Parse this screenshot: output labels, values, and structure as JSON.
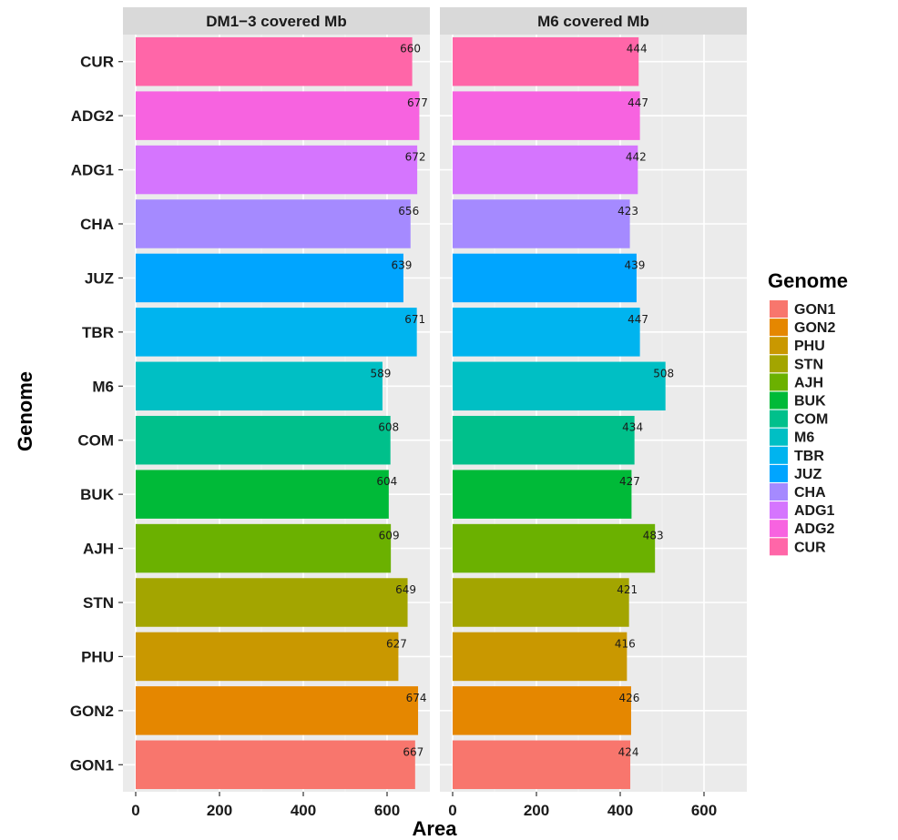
{
  "chart_data": {
    "type": "bar",
    "orientation": "horizontal",
    "xlabel": "Area",
    "ylabel": "Genome",
    "xlim": [
      0,
      700
    ],
    "xticks": [
      0,
      200,
      400,
      600
    ],
    "grid": true,
    "legend_position": "right",
    "legend_title": "Genome",
    "categories": [
      "GON1",
      "GON2",
      "PHU",
      "STN",
      "AJH",
      "BUK",
      "COM",
      "M6",
      "TBR",
      "JUZ",
      "CHA",
      "ADG1",
      "ADG2",
      "CUR"
    ],
    "colors": [
      "#F8766D",
      "#E58700",
      "#C99800",
      "#A3A500",
      "#6BB100",
      "#00BA38",
      "#00C08B",
      "#00BFC4",
      "#00B4EF",
      "#00A5FF",
      "#A58AFF",
      "#D575FE",
      "#F763E0",
      "#FF66A8"
    ],
    "panels": [
      {
        "title": "DM1−3 covered Mb",
        "values": [
          667,
          674,
          627,
          649,
          609,
          604,
          608,
          589,
          671,
          639,
          656,
          672,
          677,
          660
        ]
      },
      {
        "title": "M6 covered Mb",
        "values": [
          424,
          426,
          416,
          421,
          483,
          427,
          434,
          508,
          447,
          439,
          423,
          442,
          447,
          444
        ]
      }
    ]
  }
}
